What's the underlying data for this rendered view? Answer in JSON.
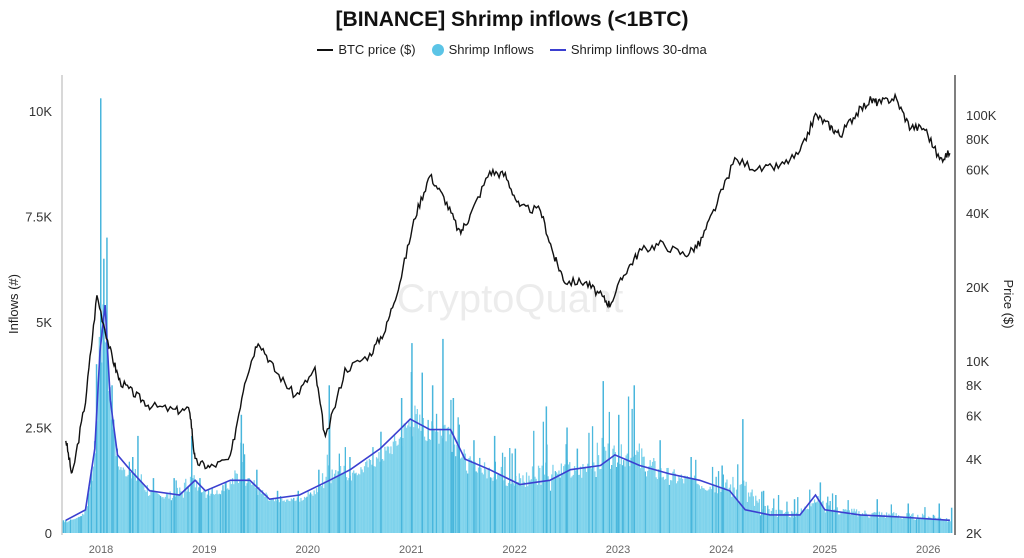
{
  "chart_data": {
    "type": "line",
    "title": "[BINANCE] Shrimp inflows (<1BTC)",
    "watermark": "CryptoQuant",
    "ylabel_left": "Inflows (#)",
    "ylabel_right": "Price ($)",
    "ylim_left": [
      0,
      10500
    ],
    "ylim_right_log": [
      2000,
      140000
    ],
    "xlim": [
      2017.62,
      2026.26
    ],
    "x_ticks": [
      "2018",
      "2019",
      "2020",
      "2021",
      "2022",
      "2023",
      "2024",
      "2025",
      "2026"
    ],
    "y_left_ticks": [
      {
        "v": 0,
        "label": "0"
      },
      {
        "v": 2500,
        "label": "2.5K"
      },
      {
        "v": 5000,
        "label": "5K"
      },
      {
        "v": 7500,
        "label": "7.5K"
      },
      {
        "v": 10000,
        "label": "10K"
      }
    ],
    "y_right_ticks": [
      {
        "v": 2000,
        "label": "2K"
      },
      {
        "v": 4000,
        "label": "4K"
      },
      {
        "v": 6000,
        "label": "6K"
      },
      {
        "v": 8000,
        "label": "8K"
      },
      {
        "v": 10000,
        "label": "10K"
      },
      {
        "v": 20000,
        "label": "20K"
      },
      {
        "v": 40000,
        "label": "40K"
      },
      {
        "v": 60000,
        "label": "60K"
      },
      {
        "v": 80000,
        "label": "80K"
      },
      {
        "v": 100000,
        "label": "100K"
      }
    ],
    "legend": [
      {
        "name": "BTC price ($)",
        "kind": "line",
        "color": "#111111"
      },
      {
        "name": "Shrimp Inflows",
        "kind": "dot",
        "color": "#5bc4e6"
      },
      {
        "name": "Shrimp Iinflows 30-dma",
        "kind": "line",
        "color": "#3b3fd0"
      }
    ],
    "series": [
      {
        "name": "BTC price ($)",
        "axis": "right",
        "x": [
          2017.66,
          2017.72,
          2017.85,
          2017.96,
          2018.09,
          2018.18,
          2018.33,
          2018.47,
          2018.72,
          2018.86,
          2018.91,
          2019.05,
          2019.25,
          2019.39,
          2019.52,
          2019.68,
          2019.88,
          2020.07,
          2020.17,
          2020.36,
          2020.6,
          2020.75,
          2020.89,
          2021.04,
          2021.18,
          2021.33,
          2021.47,
          2021.57,
          2021.76,
          2021.91,
          2022.05,
          2022.25,
          2022.39,
          2022.49,
          2022.68,
          2022.83,
          2022.92,
          2023.07,
          2023.21,
          2023.41,
          2023.65,
          2023.79,
          2023.94,
          2024.13,
          2024.37,
          2024.57,
          2024.76,
          2024.91,
          2025.05,
          2025.15,
          2025.29,
          2025.44,
          2025.53,
          2025.68,
          2025.82,
          2025.97,
          2026.11,
          2026.21
        ],
        "y": [
          4800,
          3400,
          6900,
          18500,
          11000,
          8300,
          7300,
          6600,
          6300,
          6300,
          3900,
          3700,
          4000,
          8300,
          12200,
          9200,
          7200,
          9200,
          4800,
          9200,
          10600,
          13400,
          21000,
          39000,
          57000,
          45000,
          33000,
          39000,
          59000,
          57000,
          42000,
          41000,
          26000,
          21000,
          21000,
          18500,
          17000,
          23000,
          28000,
          30000,
          27000,
          30000,
          42000,
          66000,
          60000,
          62000,
          70000,
          100000,
          90000,
          83000,
          100000,
          115000,
          112000,
          118000,
          90000,
          88000,
          66000,
          70000
        ]
      },
      {
        "name": "Shrimp Inflows",
        "axis": "left",
        "x": [
          2017.63,
          2017.8,
          2017.9,
          2017.95,
          2017.99,
          2018.02,
          2018.05,
          2018.1,
          2018.15,
          2018.3,
          2018.35,
          2018.5,
          2018.7,
          2018.87,
          2018.95,
          2019.2,
          2019.35,
          2019.5,
          2019.7,
          2019.9,
          2020.1,
          2020.2,
          2020.4,
          2020.7,
          2020.9,
          2021.0,
          2021.1,
          2021.2,
          2021.3,
          2021.4,
          2021.6,
          2021.8,
          2022.0,
          2022.3,
          2022.5,
          2022.6,
          2022.85,
          2023.0,
          2023.15,
          2023.4,
          2023.7,
          2024.0,
          2024.2,
          2024.4,
          2024.7,
          2024.95,
          2025.1,
          2025.5,
          2025.8,
          2026.1,
          2026.22
        ],
        "y": [
          300,
          400,
          1500,
          4000,
          10300,
          6500,
          7000,
          3500,
          2000,
          1800,
          2300,
          1300,
          1300,
          2300,
          1300,
          1200,
          2800,
          1500,
          1000,
          1000,
          1500,
          3500,
          1800,
          2400,
          3200,
          4500,
          3800,
          3500,
          4600,
          3200,
          2200,
          2300,
          2000,
          3000,
          2500,
          2000,
          3600,
          2800,
          3500,
          2200,
          1800,
          1600,
          2700,
          1000,
          800,
          1200,
          900,
          800,
          700,
          700,
          600
        ]
      },
      {
        "name": "Shrimp Iinflows 30-dma",
        "axis": "left",
        "x": [
          2017.66,
          2017.85,
          2017.94,
          2017.99,
          2018.04,
          2018.09,
          2018.16,
          2018.28,
          2018.47,
          2018.76,
          2018.91,
          2019.01,
          2019.25,
          2019.44,
          2019.63,
          2019.92,
          2020.21,
          2020.41,
          2020.7,
          2020.89,
          2020.99,
          2021.18,
          2021.38,
          2021.52,
          2021.76,
          2022.05,
          2022.34,
          2022.54,
          2022.83,
          2022.97,
          2023.21,
          2023.5,
          2023.79,
          2024.08,
          2024.23,
          2024.47,
          2024.76,
          2024.91,
          2025.0,
          2025.34,
          2025.73,
          2026.21
        ],
        "y": [
          300,
          550,
          2000,
          4300,
          5400,
          3150,
          1850,
          1500,
          1000,
          900,
          1250,
          1000,
          1250,
          1250,
          800,
          900,
          1250,
          1500,
          2000,
          2450,
          2700,
          2450,
          2450,
          1750,
          1500,
          1150,
          1250,
          1500,
          1600,
          1850,
          1600,
          1400,
          1250,
          1000,
          550,
          430,
          430,
          900,
          550,
          430,
          380,
          300
        ]
      }
    ]
  }
}
